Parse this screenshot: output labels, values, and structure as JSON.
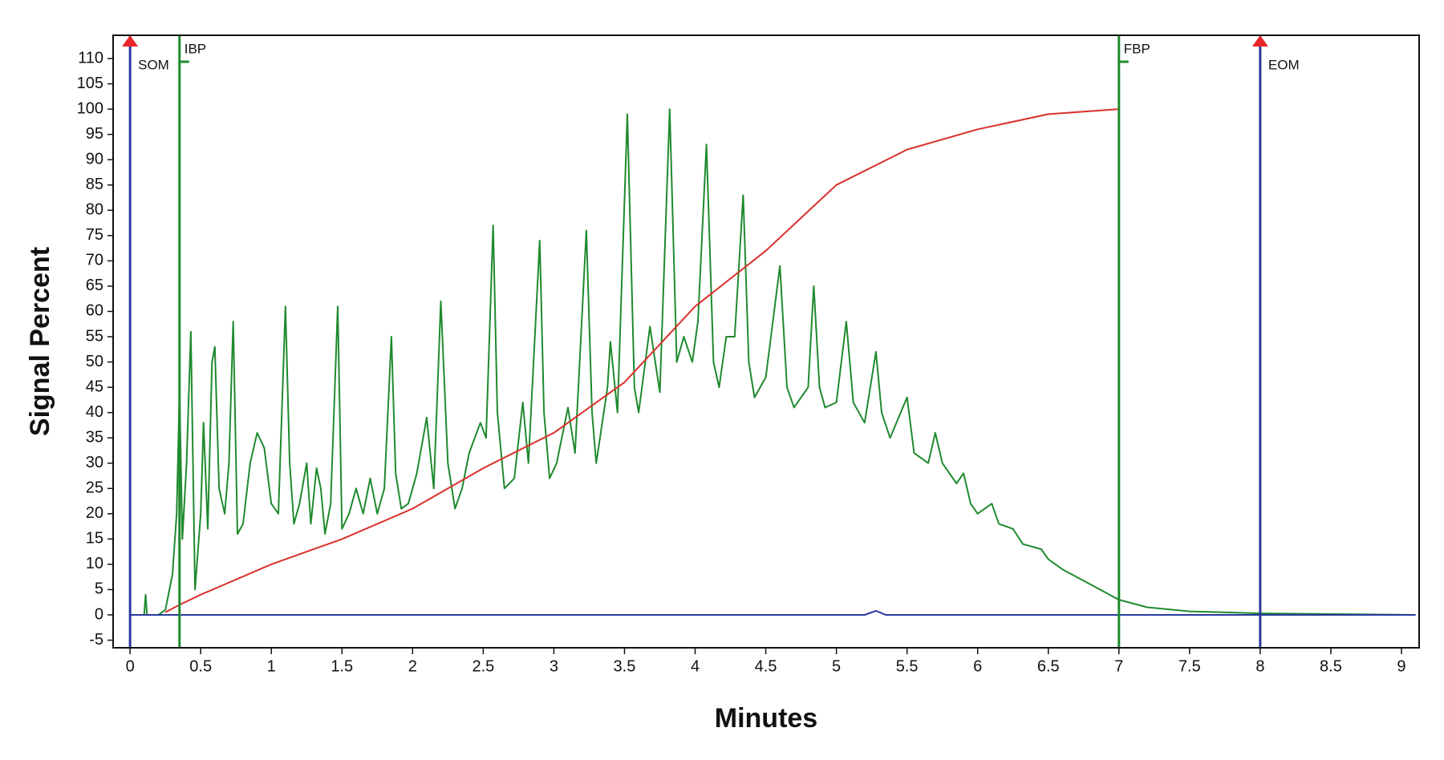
{
  "chart_data": {
    "type": "line",
    "xlabel": "Minutes",
    "ylabel": "Signal Percent",
    "xlim": [
      -0.12,
      9.125
    ],
    "ylim": [
      -6.5,
      114.6
    ],
    "xticks": [
      0,
      0.5,
      1,
      1.5,
      2,
      2.5,
      3,
      3.5,
      4,
      4.5,
      5,
      5.5,
      6,
      6.5,
      7,
      7.5,
      8,
      8.5,
      9
    ],
    "yticks": [
      -5,
      0,
      5,
      10,
      15,
      20,
      25,
      30,
      35,
      40,
      45,
      50,
      55,
      60,
      65,
      70,
      75,
      80,
      85,
      90,
      95,
      100,
      105,
      110
    ],
    "series": [
      {
        "color": "#1f8a2e",
        "x": [
          0,
          0.1,
          0.11,
          0.12,
          0.2,
          0.25,
          0.3,
          0.33,
          0.35,
          0.37,
          0.4,
          0.43,
          0.46,
          0.5,
          0.52,
          0.55,
          0.58,
          0.6,
          0.63,
          0.67,
          0.7,
          0.73,
          0.76,
          0.8,
          0.85,
          0.9,
          0.95,
          1.0,
          1.05,
          1.1,
          1.13,
          1.16,
          1.2,
          1.25,
          1.28,
          1.32,
          1.35,
          1.38,
          1.42,
          1.47,
          1.5,
          1.55,
          1.6,
          1.65,
          1.7,
          1.75,
          1.8,
          1.85,
          1.88,
          1.92,
          1.97,
          2.03,
          2.1,
          2.15,
          2.2,
          2.25,
          2.3,
          2.35,
          2.4,
          2.48,
          2.52,
          2.57,
          2.6,
          2.65,
          2.72,
          2.78,
          2.82,
          2.9,
          2.93,
          2.97,
          3.02,
          3.1,
          3.15,
          3.23,
          3.27,
          3.3,
          3.38,
          3.4,
          3.45,
          3.52,
          3.57,
          3.6,
          3.68,
          3.75,
          3.82,
          3.87,
          3.92,
          3.98,
          4.02,
          4.08,
          4.13,
          4.17,
          4.22,
          4.28,
          4.34,
          4.38,
          4.42,
          4.5,
          4.6,
          4.65,
          4.7,
          4.8,
          4.84,
          4.88,
          4.92,
          5.0,
          5.07,
          5.12,
          5.2,
          5.28,
          5.32,
          5.38,
          5.5,
          5.55,
          5.65,
          5.7,
          5.75,
          5.85,
          5.9,
          5.95,
          6.0,
          6.1,
          6.15,
          6.25,
          6.32,
          6.45,
          6.5,
          6.6,
          6.8,
          7.0,
          7.2,
          7.5,
          8.0,
          9.1
        ],
        "values": [
          0,
          0,
          4,
          0,
          0,
          1,
          8,
          20,
          44,
          15,
          30,
          56,
          5,
          20,
          38,
          17,
          50,
          53,
          25,
          20,
          30,
          58,
          16,
          18,
          30,
          36,
          33,
          22,
          20,
          61,
          30,
          18,
          22,
          30,
          18,
          29,
          25,
          16,
          22,
          61,
          17,
          20,
          25,
          20,
          27,
          20,
          25,
          55,
          28,
          21,
          22,
          28,
          39,
          25,
          62,
          30,
          21,
          25,
          32,
          38,
          35,
          77,
          40,
          25,
          27,
          42,
          30,
          74,
          40,
          27,
          30,
          41,
          32,
          76,
          40,
          30,
          45,
          54,
          40,
          99,
          45,
          40,
          57,
          44,
          100,
          50,
          55,
          50,
          58,
          93,
          50,
          45,
          55,
          55,
          83,
          50,
          43,
          47,
          69,
          45,
          41,
          45,
          65,
          45,
          41,
          42,
          58,
          42,
          38,
          52,
          40,
          35,
          43,
          32,
          30,
          36,
          30,
          26,
          28,
          22,
          20,
          22,
          18,
          17,
          14,
          13,
          11,
          9,
          6,
          3,
          1.5,
          0.7,
          0.3,
          0
        ]
      },
      {
        "color": "#d9302b",
        "x": [
          0.25,
          0.35,
          0.5,
          1,
          1.5,
          2,
          2.5,
          3,
          3.5,
          4,
          4.5,
          5,
          5.5,
          6,
          6.5,
          7
        ],
        "values": [
          0.5,
          2,
          4,
          10,
          15,
          21,
          29,
          36,
          46,
          61,
          72,
          85,
          92,
          96,
          99,
          100
        ]
      },
      {
        "color": "#2b3a9e",
        "x": [
          0,
          5.2,
          5.28,
          5.35,
          9.1
        ],
        "values": [
          0,
          0,
          0.8,
          0,
          0
        ]
      }
    ],
    "markers": [
      {
        "label": "SOM",
        "x": 0,
        "color": "#2b3a9e"
      },
      {
        "label": "IBP",
        "x": 0.35,
        "color": "#1f8a2e"
      },
      {
        "label": "FBP",
        "x": 7,
        "color": "#1f8a2e"
      },
      {
        "label": "EOM",
        "x": 8,
        "color": "#2b3a9e"
      }
    ]
  }
}
